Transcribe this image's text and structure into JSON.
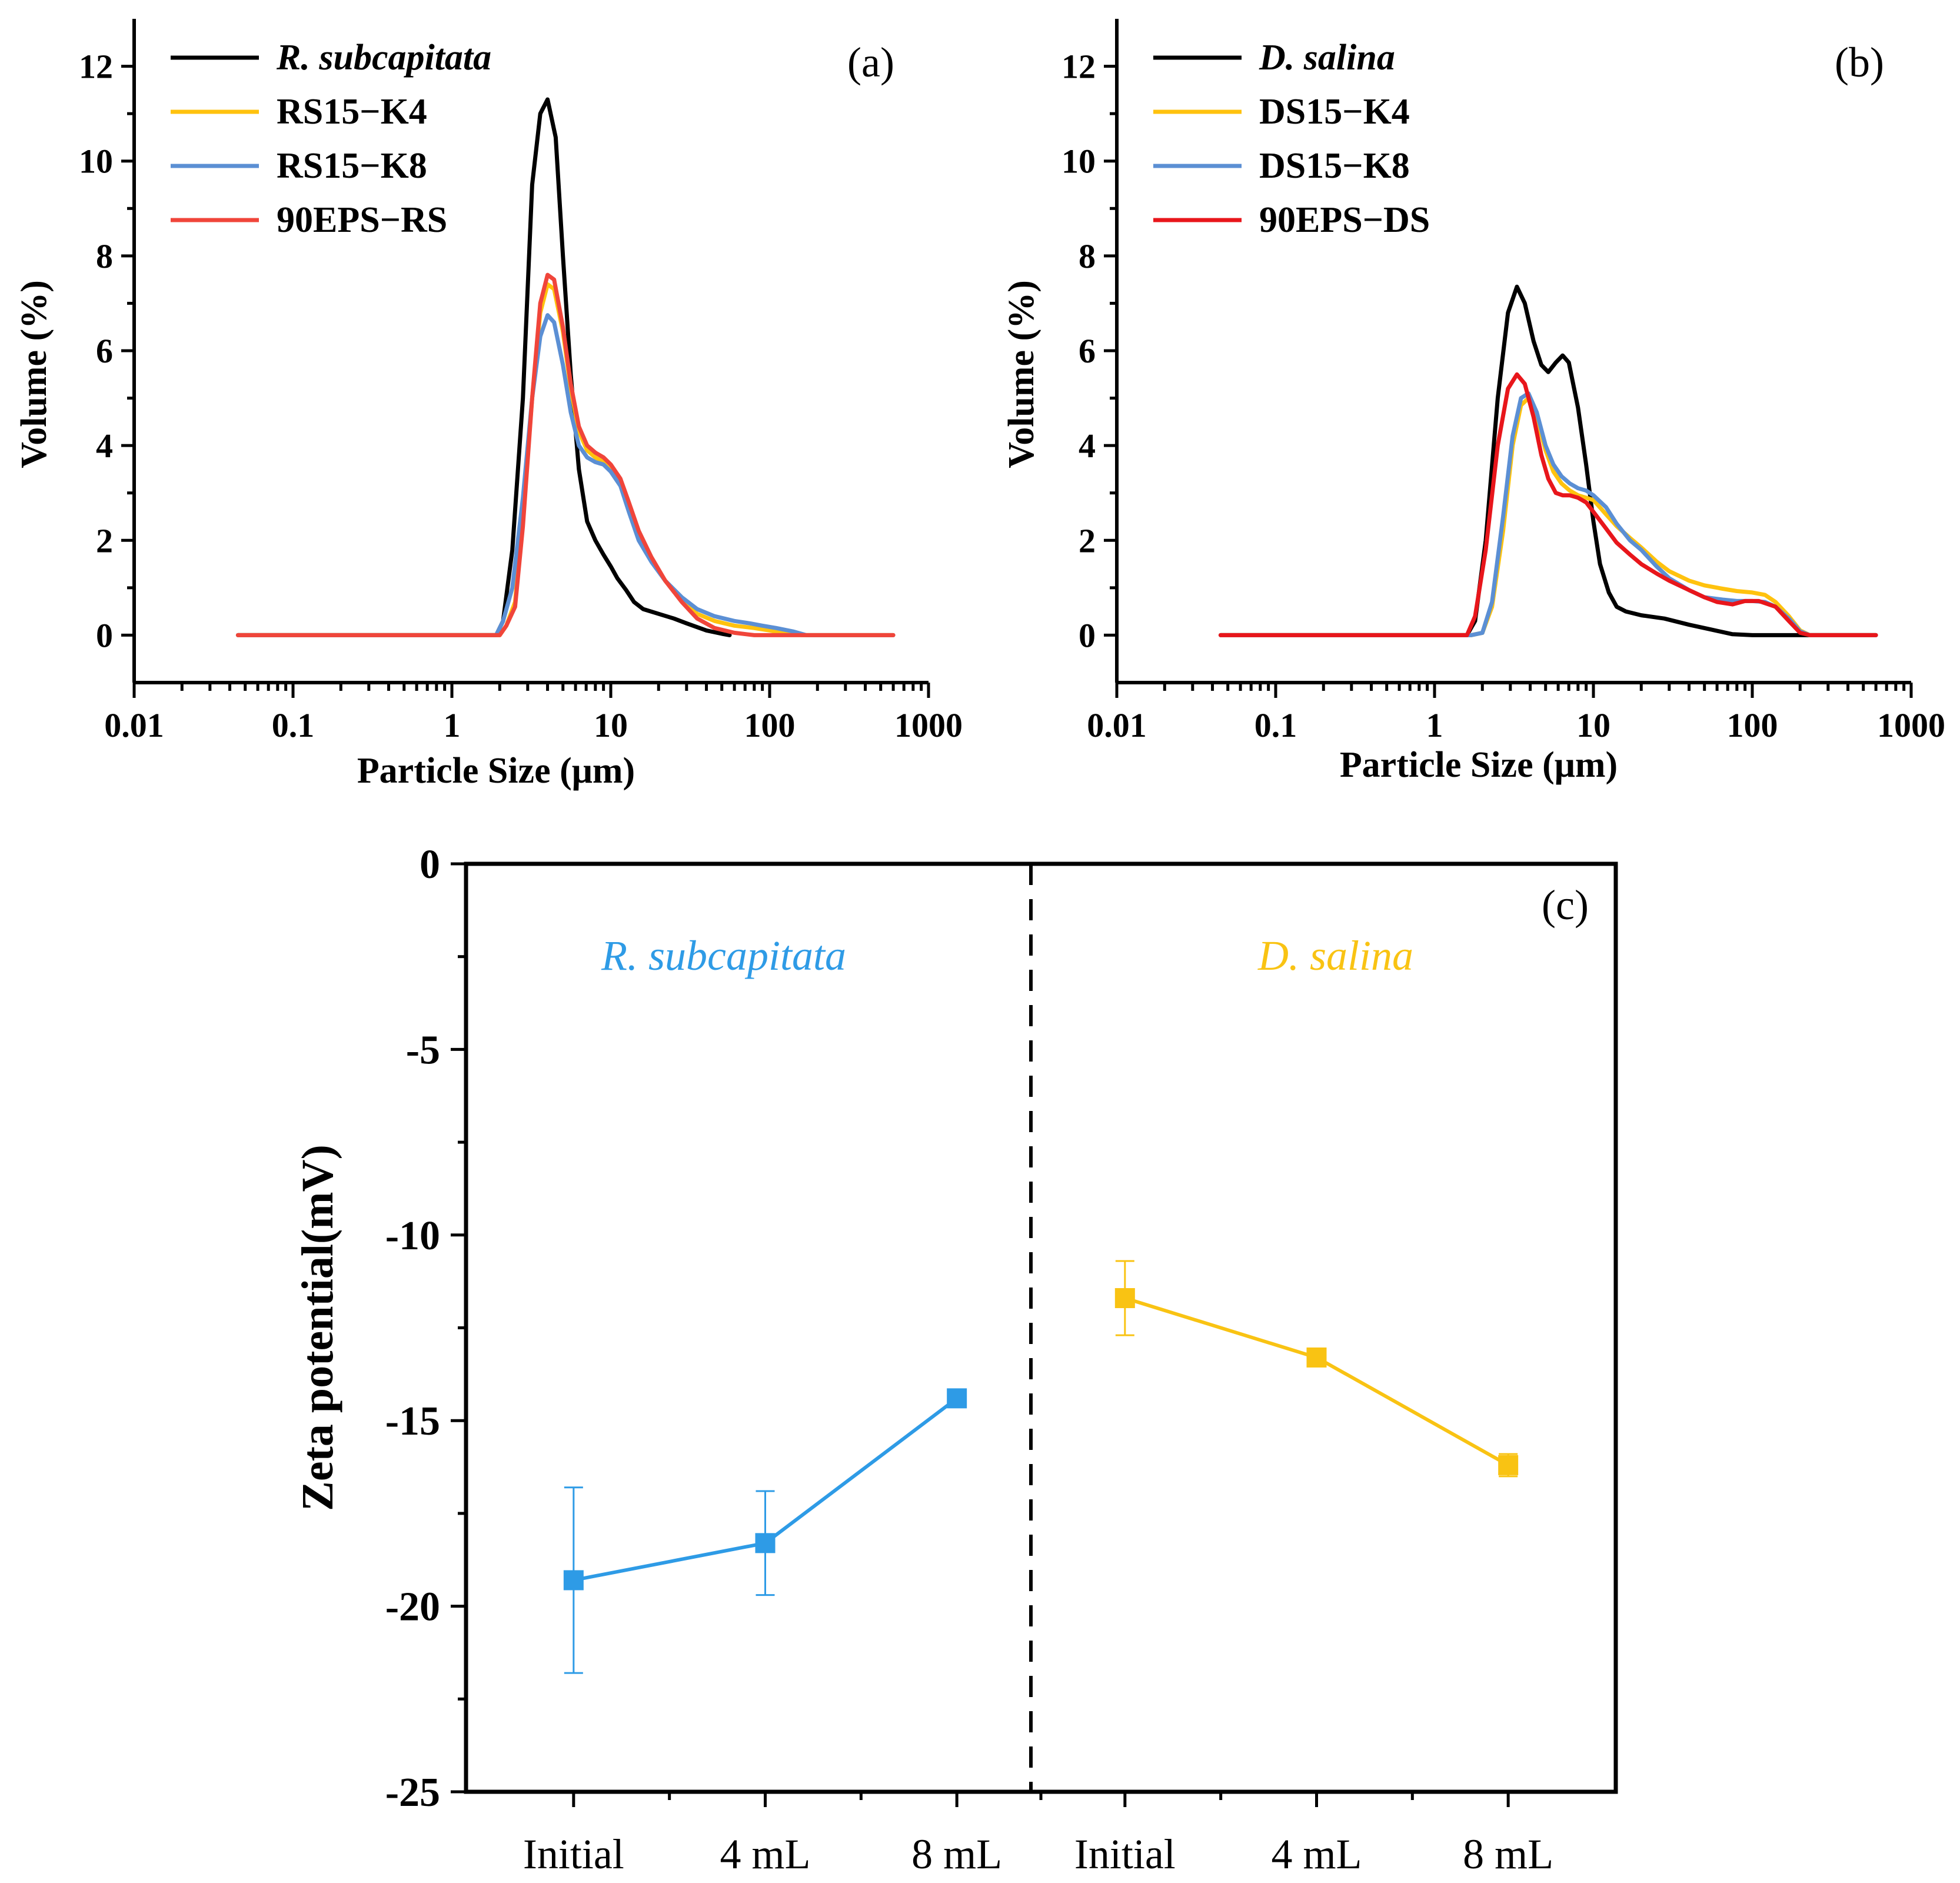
{
  "chart_data": [
    {
      "id": "a",
      "type": "line",
      "panel_label": "(a)",
      "xlabel": "Particle Size (μm)",
      "ylabel": "Volume (%)",
      "xscale": "log",
      "xlim": [
        0.01,
        1000
      ],
      "ylim": [
        -1,
        13
      ],
      "xticks": [
        0.01,
        0.1,
        1,
        10,
        100,
        1000
      ],
      "xtick_labels": [
        "0.01",
        "0.1",
        "1",
        "10",
        "100",
        "1000"
      ],
      "yticks": [
        0,
        2,
        4,
        6,
        8,
        10,
        12
      ],
      "ytick_labels": [
        "0",
        "2",
        "4",
        "6",
        "8",
        "10",
        "12"
      ],
      "legend_position": "top-left",
      "series": [
        {
          "name": "R. subcapitata",
          "italic": true,
          "color": "#000000",
          "x": [
            0.045,
            1.9,
            2.1,
            2.4,
            2.8,
            3.2,
            3.6,
            4.0,
            4.5,
            5.0,
            5.6,
            6.3,
            7.1,
            8.0,
            9.0,
            10,
            11,
            12.5,
            14,
            16,
            20,
            25,
            30,
            40,
            50,
            56
          ],
          "y": [
            0,
            0,
            0.3,
            1.8,
            5.0,
            9.5,
            11.0,
            11.3,
            10.5,
            8.0,
            5.5,
            3.5,
            2.4,
            2.0,
            1.7,
            1.45,
            1.2,
            0.95,
            0.7,
            0.55,
            0.45,
            0.35,
            0.25,
            0.1,
            0.03,
            0
          ]
        },
        {
          "name": "RS15−K4",
          "italic": false,
          "color": "#FFC20E",
          "x": [
            0.045,
            2.0,
            2.2,
            2.5,
            2.8,
            3.2,
            3.6,
            4.0,
            4.4,
            5.0,
            5.6,
            6.3,
            7.1,
            8.0,
            9.0,
            10,
            11.5,
            13,
            15,
            18,
            22,
            28,
            35,
            45,
            60,
            80,
            100,
            120,
            140,
            160,
            600
          ],
          "y": [
            0,
            0,
            0.2,
            0.7,
            2.5,
            5.0,
            6.8,
            7.4,
            7.3,
            6.4,
            5.2,
            4.3,
            3.9,
            3.75,
            3.65,
            3.5,
            3.2,
            2.7,
            2.1,
            1.6,
            1.15,
            0.75,
            0.45,
            0.3,
            0.2,
            0.15,
            0.1,
            0.05,
            0.02,
            0,
            0
          ]
        },
        {
          "name": "RS15−K8",
          "italic": false,
          "color": "#5B8FD4",
          "x": [
            0.045,
            1.9,
            2.1,
            2.4,
            2.8,
            3.2,
            3.6,
            4.0,
            4.4,
            5.0,
            5.6,
            6.3,
            7.1,
            8.0,
            9.0,
            10,
            11.5,
            13,
            15,
            18,
            22,
            28,
            35,
            45,
            60,
            75,
            90,
            110,
            140,
            170,
            600
          ],
          "y": [
            0,
            0,
            0.3,
            1.0,
            2.9,
            5.0,
            6.3,
            6.75,
            6.6,
            5.7,
            4.7,
            4.0,
            3.75,
            3.65,
            3.6,
            3.45,
            3.15,
            2.6,
            2.0,
            1.55,
            1.15,
            0.8,
            0.55,
            0.4,
            0.3,
            0.25,
            0.2,
            0.15,
            0.08,
            0,
            0
          ]
        },
        {
          "name": "90EPS−RS",
          "italic": false,
          "color": "#F0453A",
          "x": [
            0.045,
            2.0,
            2.2,
            2.5,
            2.8,
            3.2,
            3.6,
            4.0,
            4.4,
            5.0,
            5.6,
            6.3,
            7.1,
            8.0,
            9.0,
            10,
            11.5,
            13,
            15,
            18,
            22,
            28,
            35,
            45,
            60,
            80,
            110,
            150,
            600
          ],
          "y": [
            0,
            0,
            0.2,
            0.6,
            2.3,
            5.0,
            7.0,
            7.6,
            7.5,
            6.5,
            5.3,
            4.4,
            4.0,
            3.85,
            3.75,
            3.6,
            3.3,
            2.8,
            2.2,
            1.65,
            1.15,
            0.7,
            0.35,
            0.15,
            0.05,
            0,
            0,
            0,
            0
          ]
        }
      ]
    },
    {
      "id": "b",
      "type": "line",
      "panel_label": "(b)",
      "xlabel": "Particle Size (μm)",
      "ylabel": "Volume (%)",
      "xscale": "log",
      "xlim": [
        0.01,
        1000
      ],
      "ylim": [
        -1,
        13
      ],
      "xticks": [
        0.01,
        0.1,
        1,
        10,
        100,
        1000
      ],
      "xtick_labels": [
        "0.01",
        "0.1",
        "1",
        "10",
        "100",
        "1000"
      ],
      "yticks": [
        0,
        2,
        4,
        6,
        8,
        10,
        12
      ],
      "ytick_labels": [
        "0",
        "2",
        "4",
        "6",
        "8",
        "10",
        "12"
      ],
      "legend_position": "top-left",
      "series": [
        {
          "name": "D. salina",
          "italic": true,
          "color": "#000000",
          "x": [
            0.045,
            1.6,
            1.8,
            2.1,
            2.5,
            2.9,
            3.3,
            3.7,
            4.2,
            4.7,
            5.2,
            5.8,
            6.4,
            7.0,
            8.0,
            9.0,
            10,
            11,
            12.5,
            14,
            16,
            20,
            28,
            40,
            55,
            75,
            100,
            600
          ],
          "y": [
            0,
            0,
            0.3,
            2.0,
            5.0,
            6.8,
            7.35,
            7.0,
            6.2,
            5.7,
            5.55,
            5.75,
            5.9,
            5.75,
            4.8,
            3.6,
            2.4,
            1.5,
            0.9,
            0.6,
            0.5,
            0.42,
            0.35,
            0.22,
            0.12,
            0.02,
            0,
            0
          ]
        },
        {
          "name": "DS15−K4",
          "italic": false,
          "color": "#FFC20E",
          "x": [
            0.045,
            1.7,
            2.0,
            2.3,
            2.7,
            3.1,
            3.5,
            3.9,
            4.4,
            5.0,
            5.6,
            6.3,
            7.1,
            8.0,
            9.0,
            10,
            12,
            14,
            17,
            20,
            25,
            30,
            40,
            50,
            65,
            80,
            100,
            120,
            140,
            170,
            200,
            230,
            600
          ],
          "y": [
            0,
            0,
            0.05,
            0.6,
            2.2,
            4.0,
            4.85,
            5.0,
            4.6,
            3.9,
            3.45,
            3.2,
            3.05,
            2.95,
            2.9,
            2.85,
            2.55,
            2.3,
            2.05,
            1.85,
            1.55,
            1.35,
            1.15,
            1.05,
            0.98,
            0.93,
            0.9,
            0.85,
            0.7,
            0.4,
            0.1,
            0,
            0
          ]
        },
        {
          "name": "DS15−K8",
          "italic": false,
          "color": "#5B8FD4",
          "x": [
            0.045,
            1.7,
            2.0,
            2.3,
            2.7,
            3.1,
            3.5,
            3.9,
            4.4,
            5.0,
            5.6,
            6.3,
            7.1,
            8.0,
            9.0,
            10,
            12,
            14,
            17,
            20,
            25,
            30,
            40,
            50,
            65,
            80,
            100,
            120,
            140,
            170,
            200,
            230,
            600
          ],
          "y": [
            0,
            0,
            0.05,
            0.7,
            2.5,
            4.2,
            5.0,
            5.1,
            4.7,
            4.0,
            3.6,
            3.35,
            3.2,
            3.1,
            3.05,
            2.95,
            2.7,
            2.35,
            2.0,
            1.8,
            1.45,
            1.2,
            0.95,
            0.8,
            0.75,
            0.72,
            0.72,
            0.7,
            0.6,
            0.35,
            0.08,
            0,
            0
          ]
        },
        {
          "name": "90EPS−DS",
          "italic": false,
          "color": "#E8161B",
          "x": [
            0.045,
            1.6,
            1.8,
            2.1,
            2.5,
            2.9,
            3.3,
            3.7,
            4.2,
            4.7,
            5.2,
            5.8,
            6.4,
            7.1,
            8.0,
            9.0,
            10,
            12,
            14,
            17,
            20,
            25,
            30,
            40,
            50,
            60,
            75,
            90,
            110,
            140,
            170,
            200,
            230,
            600
          ],
          "y": [
            0,
            0,
            0.4,
            1.8,
            4.0,
            5.2,
            5.5,
            5.3,
            4.6,
            3.8,
            3.3,
            3.0,
            2.95,
            2.95,
            2.9,
            2.8,
            2.6,
            2.25,
            1.95,
            1.7,
            1.5,
            1.3,
            1.15,
            0.95,
            0.8,
            0.7,
            0.65,
            0.72,
            0.72,
            0.6,
            0.3,
            0.05,
            0,
            0
          ]
        }
      ]
    },
    {
      "id": "c",
      "type": "scatter",
      "panel_label": "(c)",
      "xlabel": "",
      "ylabel": "Zeta potential(mV)",
      "categories": [
        "Initial",
        "4 mL",
        "8 mL",
        "Initial",
        "4 mL",
        "8 mL"
      ],
      "ylim": [
        -25,
        0
      ],
      "yticks": [
        0,
        -5,
        -10,
        -15,
        -20,
        -25
      ],
      "ytick_labels": [
        "0",
        "-5",
        "-10",
        "-15",
        "-20",
        "-25"
      ],
      "annotations": [
        {
          "text": "R. subcapitata",
          "color": "#2E9BE6"
        },
        {
          "text": "D. salina",
          "color": "#F9C313"
        }
      ],
      "series": [
        {
          "name": "R. subcapitata",
          "color": "#2E9BE6",
          "category_index": [
            0,
            1,
            2
          ],
          "values": [
            -19.3,
            -18.3,
            -14.4
          ],
          "errors": [
            2.5,
            1.4,
            0.1
          ]
        },
        {
          "name": "D. salina",
          "color": "#F9C313",
          "category_index": [
            3,
            4,
            5
          ],
          "values": [
            -11.7,
            -13.3,
            -16.2
          ],
          "errors": [
            1.0,
            0.1,
            0.3
          ]
        }
      ]
    }
  ]
}
